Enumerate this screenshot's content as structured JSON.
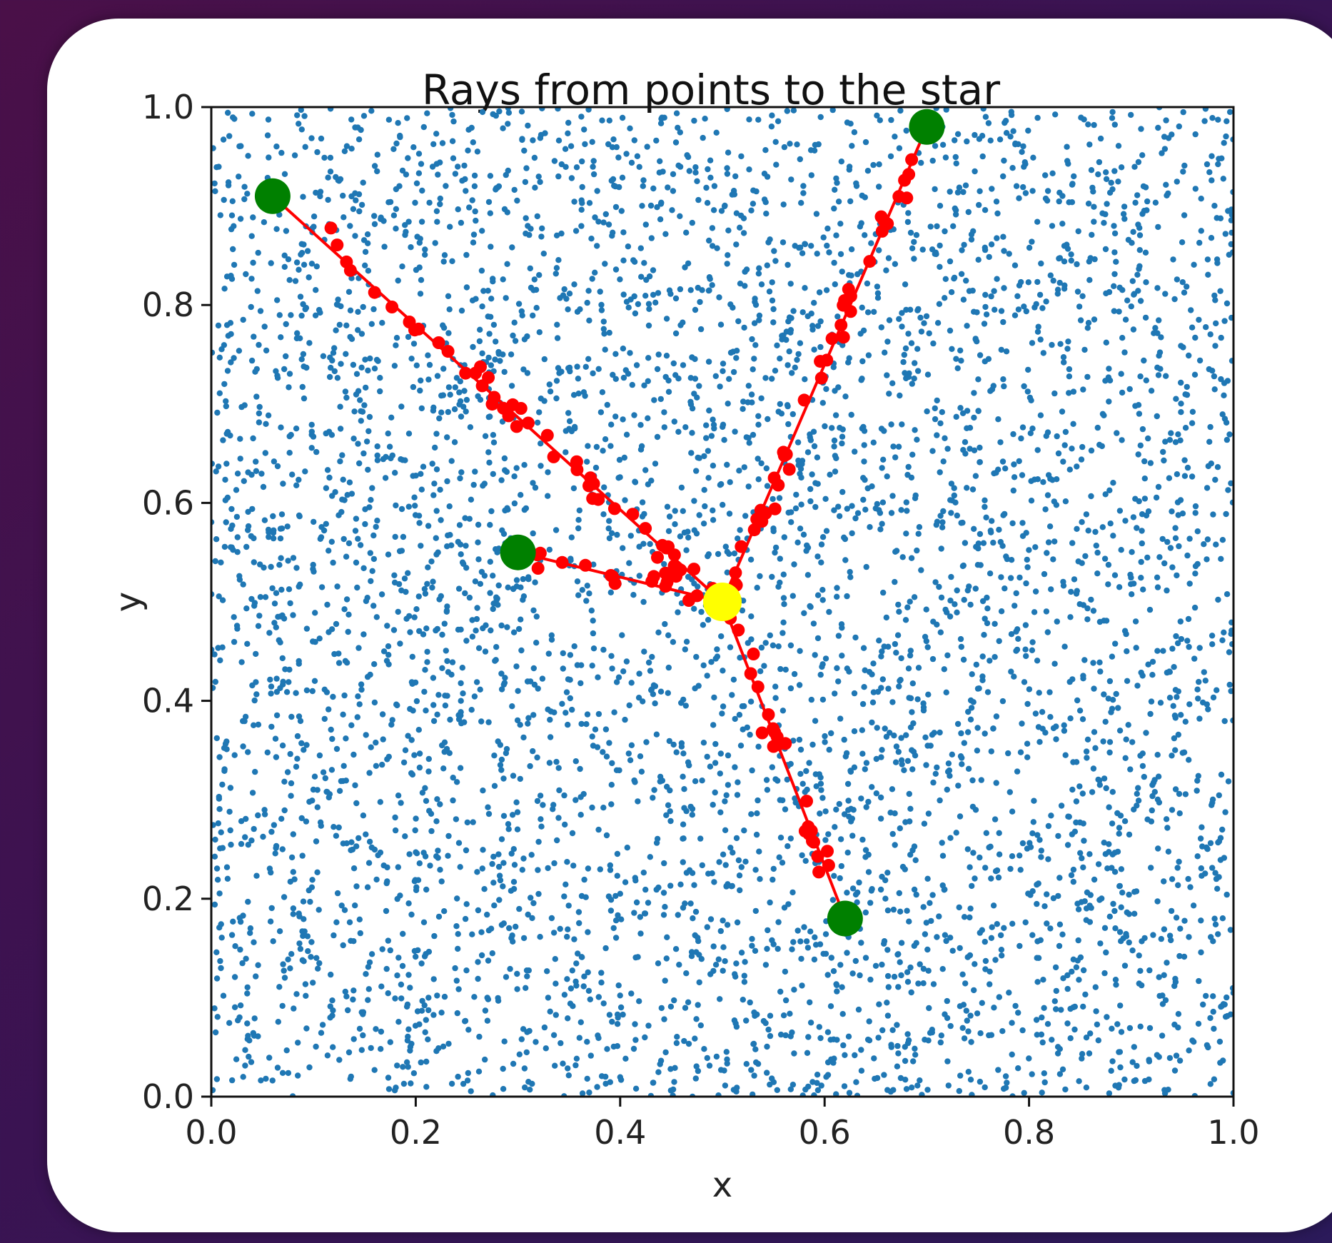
{
  "chart_data": {
    "type": "scatter",
    "title": "Rays from points to the star",
    "xlabel": "x",
    "ylabel": "y",
    "xlim": [
      0.0,
      1.0
    ],
    "ylim": [
      0.0,
      1.0
    ],
    "x_ticks": [
      "0.0",
      "0.2",
      "0.4",
      "0.6",
      "0.8",
      "1.0"
    ],
    "y_ticks": [
      "0.0",
      "0.2",
      "0.4",
      "0.6",
      "0.8",
      "1.0"
    ],
    "grid": false,
    "legend": "none",
    "colors": {
      "background_points": "#1f77b4",
      "ray": "#ff0000",
      "endpoints": "#008000",
      "star": "#ffff00"
    },
    "background_points": {
      "count": 5000,
      "distribution": "uniform",
      "x_range": [
        0.0,
        1.0
      ],
      "y_range": [
        0.0,
        1.0
      ]
    },
    "star": {
      "x": 0.5,
      "y": 0.5
    },
    "start_points": [
      {
        "x": 0.06,
        "y": 0.91
      },
      {
        "x": 0.7,
        "y": 0.98
      },
      {
        "x": 0.3,
        "y": 0.55
      },
      {
        "x": 0.62,
        "y": 0.18
      }
    ]
  }
}
